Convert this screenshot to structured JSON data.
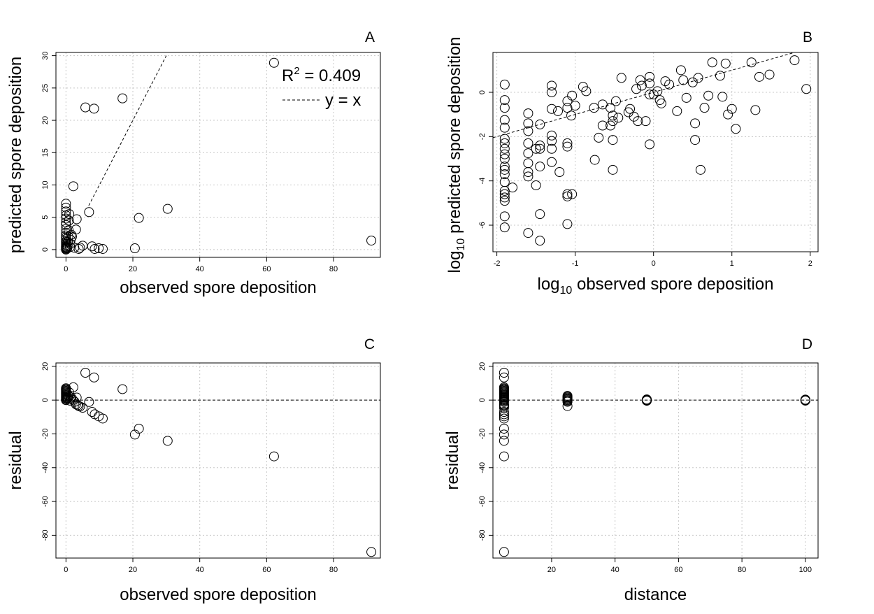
{
  "chart_data": [
    {
      "panel": "A",
      "type": "scatter",
      "xlabel": "observed spore deposition",
      "ylabel": "predicted spore deposition",
      "xlim": [
        -3,
        94
      ],
      "ylim": [
        -1.2,
        30.5
      ],
      "xticks": [
        0,
        20,
        40,
        60,
        80
      ],
      "yticks": [
        0,
        5,
        10,
        15,
        20,
        25,
        30
      ],
      "grid": true,
      "legend": {
        "r2_prefix": "R",
        "r2_exp": "2",
        "r2_value": " = 0.409",
        "line_label": "y = x",
        "position": "top-right"
      },
      "reference_line": {
        "kind": "y=x",
        "from": [
          6.8,
          6.8
        ],
        "to": [
          30,
          30
        ]
      },
      "points": [
        [
          0,
          0
        ],
        [
          0,
          0.1
        ],
        [
          0,
          0.2
        ],
        [
          0,
          0.3
        ],
        [
          0,
          0.4
        ],
        [
          0,
          0.5
        ],
        [
          0,
          0.7
        ],
        [
          0,
          0.9
        ],
        [
          0,
          1.1
        ],
        [
          0,
          1.3
        ],
        [
          0,
          1.6
        ],
        [
          0,
          1.9
        ],
        [
          0,
          2.2
        ],
        [
          0,
          2.6
        ],
        [
          0,
          3.2
        ],
        [
          0,
          3.8
        ],
        [
          0,
          4.2
        ],
        [
          0,
          4.8
        ],
        [
          0,
          5.3
        ],
        [
          0,
          5.9
        ],
        [
          0,
          6.5
        ],
        [
          0,
          7.1
        ],
        [
          0.4,
          0.2
        ],
        [
          0.5,
          0.6
        ],
        [
          0.6,
          1.2
        ],
        [
          0.7,
          2.0
        ],
        [
          0.8,
          3.0
        ],
        [
          0.9,
          4.5
        ],
        [
          1.0,
          5.5
        ],
        [
          1.2,
          0.4
        ],
        [
          1.3,
          0.9
        ],
        [
          1.4,
          1.5
        ],
        [
          1.6,
          2.3
        ],
        [
          1.8,
          2.0
        ],
        [
          2.2,
          9.8
        ],
        [
          2.5,
          0.3
        ],
        [
          3.0,
          3.1
        ],
        [
          3.2,
          4.7
        ],
        [
          3.8,
          0.1
        ],
        [
          4.2,
          0.3
        ],
        [
          5.0,
          0.6
        ],
        [
          5.8,
          22.0
        ],
        [
          6.9,
          5.8
        ],
        [
          7.8,
          0.5
        ],
        [
          8.4,
          21.8
        ],
        [
          8.6,
          0.1
        ],
        [
          9.8,
          0.2
        ],
        [
          11.0,
          0.1
        ],
        [
          16.9,
          23.4
        ],
        [
          20.6,
          0.2
        ],
        [
          21.8,
          4.9
        ],
        [
          30.4,
          6.3
        ],
        [
          62.2,
          28.9
        ],
        [
          91.3,
          1.4
        ]
      ]
    },
    {
      "panel": "B",
      "type": "scatter",
      "xlabel_prefix": "log",
      "xlabel_sub": "10",
      "xlabel_rest": " observed spore deposition",
      "ylabel_prefix": "log",
      "ylabel_sub": "10",
      "ylabel_rest": " predicted spore deposition",
      "xlim": [
        -2.05,
        2.1
      ],
      "ylim": [
        -7.2,
        1.8
      ],
      "xticks": [
        -2,
        -1,
        0,
        1,
        2
      ],
      "yticks": [
        -6,
        -4,
        -2,
        0
      ],
      "grid": true,
      "reference_line": {
        "kind": "y=x",
        "from": [
          -2.05,
          -2.05
        ],
        "to": [
          1.8,
          1.8
        ]
      },
      "points": [
        [
          -1.9,
          0.35
        ],
        [
          -1.9,
          -0.35
        ],
        [
          -1.9,
          -0.7
        ],
        [
          -1.9,
          -1.25
        ],
        [
          -1.9,
          -1.6
        ],
        [
          -1.9,
          -2.1
        ],
        [
          -1.9,
          -2.3
        ],
        [
          -1.9,
          -2.55
        ],
        [
          -1.9,
          -2.8
        ],
        [
          -1.9,
          -3.0
        ],
        [
          -1.9,
          -3.35
        ],
        [
          -1.9,
          -3.5
        ],
        [
          -1.9,
          -3.7
        ],
        [
          -1.9,
          -4.05
        ],
        [
          -1.9,
          -4.45
        ],
        [
          -1.9,
          -4.6
        ],
        [
          -1.9,
          -4.75
        ],
        [
          -1.9,
          -4.9
        ],
        [
          -1.9,
          -5.6
        ],
        [
          -1.9,
          -6.1
        ],
        [
          -1.8,
          -4.3
        ],
        [
          -1.6,
          -0.95
        ],
        [
          -1.6,
          -1.4
        ],
        [
          -1.6,
          -1.75
        ],
        [
          -1.6,
          -2.3
        ],
        [
          -1.6,
          -2.75
        ],
        [
          -1.6,
          -3.2
        ],
        [
          -1.6,
          -3.6
        ],
        [
          -1.6,
          -3.8
        ],
        [
          -1.6,
          -6.35
        ],
        [
          -1.5,
          -2.55
        ],
        [
          -1.5,
          -4.2
        ],
        [
          -1.45,
          -1.45
        ],
        [
          -1.45,
          -2.4
        ],
        [
          -1.45,
          -2.55
        ],
        [
          -1.45,
          -3.35
        ],
        [
          -1.45,
          -5.5
        ],
        [
          -1.45,
          -6.7
        ],
        [
          -1.3,
          0.3
        ],
        [
          -1.3,
          0.0
        ],
        [
          -1.3,
          -0.75
        ],
        [
          -1.3,
          -1.95
        ],
        [
          -1.3,
          -2.2
        ],
        [
          -1.3,
          -2.55
        ],
        [
          -1.3,
          -3.15
        ],
        [
          -1.22,
          -0.85
        ],
        [
          -1.2,
          -3.6
        ],
        [
          -1.1,
          -0.4
        ],
        [
          -1.1,
          -0.7
        ],
        [
          -1.1,
          -2.3
        ],
        [
          -1.1,
          -2.45
        ],
        [
          -1.1,
          -4.6
        ],
        [
          -1.1,
          -4.7
        ],
        [
          -1.1,
          -5.95
        ],
        [
          -1.05,
          -1.05
        ],
        [
          -1.04,
          -0.15
        ],
        [
          -1.04,
          -4.6
        ],
        [
          -1.0,
          -0.6
        ],
        [
          -0.9,
          0.25
        ],
        [
          -0.86,
          0.05
        ],
        [
          -0.76,
          -0.7
        ],
        [
          -0.75,
          -3.05
        ],
        [
          -0.7,
          -2.05
        ],
        [
          -0.65,
          -0.55
        ],
        [
          -0.65,
          -1.5
        ],
        [
          -0.55,
          -1.5
        ],
        [
          -0.55,
          -0.7
        ],
        [
          -0.52,
          -1.05
        ],
        [
          -0.52,
          -1.3
        ],
        [
          -0.52,
          -2.15
        ],
        [
          -0.52,
          -3.5
        ],
        [
          -0.48,
          -0.4
        ],
        [
          -0.45,
          -1.15
        ],
        [
          -0.41,
          0.65
        ],
        [
          -0.32,
          -0.9
        ],
        [
          -0.3,
          -0.75
        ],
        [
          -0.25,
          -1.1
        ],
        [
          -0.22,
          0.15
        ],
        [
          -0.2,
          -1.3
        ],
        [
          -0.17,
          0.55
        ],
        [
          -0.15,
          0.3
        ],
        [
          -0.1,
          -1.3
        ],
        [
          -0.05,
          0.7
        ],
        [
          -0.05,
          0.4
        ],
        [
          -0.05,
          -0.1
        ],
        [
          -0.05,
          -2.35
        ],
        [
          0.0,
          -0.1
        ],
        [
          0.05,
          0.05
        ],
        [
          0.08,
          -0.35
        ],
        [
          0.1,
          -0.5
        ],
        [
          0.15,
          0.5
        ],
        [
          0.2,
          0.35
        ],
        [
          0.3,
          -0.85
        ],
        [
          0.35,
          1.0
        ],
        [
          0.38,
          0.55
        ],
        [
          0.42,
          -0.25
        ],
        [
          0.5,
          0.45
        ],
        [
          0.53,
          -1.4
        ],
        [
          0.53,
          -2.15
        ],
        [
          0.57,
          0.65
        ],
        [
          0.6,
          -3.5
        ],
        [
          0.65,
          -0.7
        ],
        [
          0.7,
          -0.15
        ],
        [
          0.75,
          1.35
        ],
        [
          0.85,
          0.75
        ],
        [
          0.88,
          -0.2
        ],
        [
          0.92,
          1.3
        ],
        [
          0.95,
          -1.0
        ],
        [
          1.0,
          -0.75
        ],
        [
          1.05,
          -1.65
        ],
        [
          1.25,
          1.35
        ],
        [
          1.3,
          -0.8
        ],
        [
          1.35,
          0.7
        ],
        [
          1.48,
          0.8
        ],
        [
          1.8,
          1.45
        ],
        [
          1.95,
          0.15
        ]
      ]
    },
    {
      "panel": "C",
      "type": "scatter",
      "xlabel": "observed spore deposition",
      "ylabel": "residual",
      "xlim": [
        -3,
        94
      ],
      "ylim": [
        -93.5,
        22
      ],
      "xticks": [
        0,
        20,
        40,
        60,
        80
      ],
      "yticks": [
        -80,
        -60,
        -40,
        -20,
        0,
        20
      ],
      "grid": true,
      "reference_line": {
        "kind": "y=0"
      },
      "points": [
        [
          0,
          0
        ],
        [
          0,
          0.5
        ],
        [
          0,
          1.0
        ],
        [
          0,
          1.5
        ],
        [
          0,
          2.0
        ],
        [
          0,
          2.5
        ],
        [
          0,
          3.0
        ],
        [
          0,
          3.5
        ],
        [
          0,
          4.0
        ],
        [
          0,
          4.5
        ],
        [
          0,
          5.0
        ],
        [
          0,
          5.5
        ],
        [
          0,
          6.0
        ],
        [
          0,
          6.5
        ],
        [
          0,
          7.0
        ],
        [
          0.4,
          0.8
        ],
        [
          0.6,
          1.2
        ],
        [
          0.8,
          2.5
        ],
        [
          1.0,
          4.5
        ],
        [
          1.2,
          -0.3
        ],
        [
          1.4,
          0.8
        ],
        [
          1.6,
          1.5
        ],
        [
          2.0,
          0.3
        ],
        [
          2.2,
          7.6
        ],
        [
          2.6,
          -1.0
        ],
        [
          3.0,
          -2.5
        ],
        [
          3.2,
          1.5
        ],
        [
          3.5,
          -3.0
        ],
        [
          3.8,
          -3.5
        ],
        [
          4.2,
          -3.8
        ],
        [
          5.0,
          -4.5
        ],
        [
          5.8,
          16.2
        ],
        [
          6.9,
          -1.1
        ],
        [
          7.8,
          -7.0
        ],
        [
          8.4,
          13.4
        ],
        [
          8.6,
          -8.4
        ],
        [
          9.8,
          -9.6
        ],
        [
          11.0,
          -10.9
        ],
        [
          16.9,
          6.5
        ],
        [
          20.6,
          -20.4
        ],
        [
          21.8,
          -16.9
        ],
        [
          30.4,
          -24.1
        ],
        [
          62.2,
          -33.3
        ],
        [
          91.3,
          -89.9
        ]
      ]
    },
    {
      "panel": "D",
      "type": "scatter",
      "xlabel": "distance",
      "ylabel": "residual",
      "xlim": [
        1.5,
        104
      ],
      "ylim": [
        -93.5,
        22
      ],
      "xticks": [
        20,
        40,
        60,
        80,
        100
      ],
      "yticks": [
        -80,
        -60,
        -40,
        -20,
        0,
        20
      ],
      "grid": true,
      "reference_line": {
        "kind": "y=0"
      },
      "points": [
        [
          5,
          16.2
        ],
        [
          5,
          13.4
        ],
        [
          5,
          7.6
        ],
        [
          5,
          7.0
        ],
        [
          5,
          6.5
        ],
        [
          5,
          6.0
        ],
        [
          5,
          5.5
        ],
        [
          5,
          5.0
        ],
        [
          5,
          4.5
        ],
        [
          5,
          4.0
        ],
        [
          5,
          3.5
        ],
        [
          5,
          3.0
        ],
        [
          5,
          2.5
        ],
        [
          5,
          2.0
        ],
        [
          5,
          1.5
        ],
        [
          5,
          1.0
        ],
        [
          5,
          0.5
        ],
        [
          5,
          0
        ],
        [
          5,
          -0.5
        ],
        [
          5,
          -1.1
        ],
        [
          5,
          -2.5
        ],
        [
          5,
          -3.0
        ],
        [
          5,
          -3.5
        ],
        [
          5,
          -4.5
        ],
        [
          5,
          -7.0
        ],
        [
          5,
          -8.4
        ],
        [
          5,
          -9.6
        ],
        [
          5,
          -10.9
        ],
        [
          5,
          -16.9
        ],
        [
          5,
          -20.4
        ],
        [
          5,
          -24.1
        ],
        [
          5,
          -33.3
        ],
        [
          5,
          -89.9
        ],
        [
          25,
          2.5
        ],
        [
          25,
          2.0
        ],
        [
          25,
          1.5
        ],
        [
          25,
          1.0
        ],
        [
          25,
          0.5
        ],
        [
          25,
          0
        ],
        [
          25,
          -0.5
        ],
        [
          25,
          -1.0
        ],
        [
          25,
          -3.5
        ],
        [
          50,
          0.4
        ],
        [
          50,
          0.2
        ],
        [
          50,
          0
        ],
        [
          50,
          -0.2
        ],
        [
          50,
          -0.4
        ],
        [
          100,
          0.3
        ],
        [
          100,
          0.1
        ],
        [
          100,
          0
        ],
        [
          100,
          -0.1
        ],
        [
          100,
          -0.3
        ]
      ]
    }
  ]
}
